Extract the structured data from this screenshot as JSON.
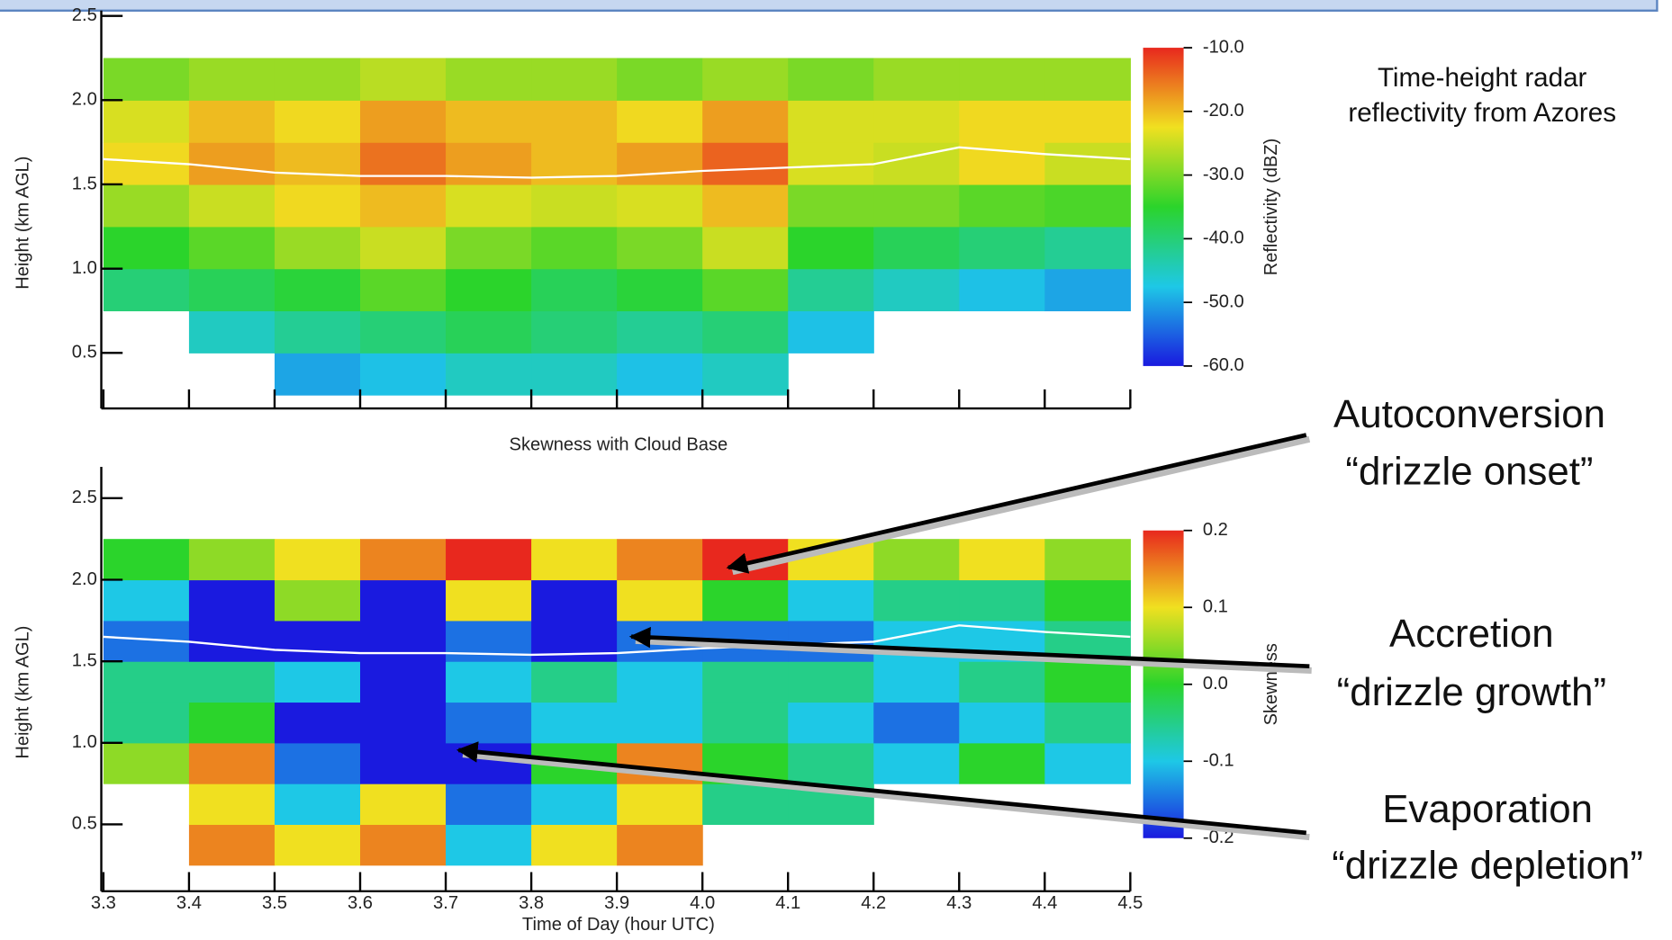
{
  "chart_data": [
    {
      "type": "heatmap",
      "ylabel": "Height (km AGL)",
      "xlim": [
        3.3,
        4.5
      ],
      "ylim": [
        0.17,
        2.5
      ],
      "yticks": [
        0.5,
        {
          "value": 1,
          "label": "1.0"
        },
        1.5,
        {
          "value": 2,
          "label": "2.0"
        },
        2.5
      ],
      "x_edges": [
        3.3,
        3.4,
        3.5,
        3.6,
        3.7,
        3.8,
        3.9,
        4.0,
        4.1,
        4.2,
        4.3,
        4.4,
        4.5
      ],
      "y_edges": [
        0.25,
        0.5,
        0.75,
        1.0,
        1.25,
        1.5,
        1.75,
        2.0,
        2.25
      ],
      "z": [
        [
          null,
          null,
          -50,
          -48,
          -45,
          -45,
          -48,
          -45,
          null,
          null,
          null,
          null
        ],
        [
          null,
          -45,
          -42,
          -40,
          -38,
          -40,
          -42,
          -40,
          -48,
          null,
          null,
          null
        ],
        [
          -40,
          -38,
          -36,
          -32,
          -35,
          -38,
          -36,
          -32,
          -42,
          -45,
          -48,
          -50
        ],
        [
          -35,
          -32,
          -28,
          -25,
          -30,
          -32,
          -30,
          -25,
          -35,
          -38,
          -40,
          -42
        ],
        [
          -28,
          -25,
          -22,
          -20,
          -24,
          -25,
          -24,
          -20,
          -30,
          -30,
          -32,
          -33
        ],
        [
          -22,
          -18,
          -20,
          -15,
          -18,
          -20,
          -18,
          -14,
          -24,
          -25,
          -22,
          -25
        ],
        [
          -24,
          -20,
          -22,
          -18,
          -20,
          -20,
          -22,
          -18,
          -24,
          -24,
          -22,
          -22
        ],
        [
          -30,
          -28,
          -28,
          -26,
          -28,
          -28,
          -30,
          -28,
          -30,
          -28,
          -28,
          -28
        ]
      ],
      "colormap": [
        "#1a1adf",
        "#1ec8e6",
        "#2bd42b",
        "#f0e020",
        "#e8281e"
      ],
      "colorbar": {
        "label": "Reflectivity (dBZ)",
        "lim": [
          -60,
          -10
        ],
        "ticks": [
          {
            "value": -10,
            "label": "-10.0"
          },
          {
            "value": -20,
            "label": "-20.0"
          },
          {
            "value": -30,
            "label": "-30.0"
          },
          {
            "value": -40,
            "label": "-40.0"
          },
          {
            "value": -50,
            "label": "-50.0"
          },
          {
            "value": -60,
            "label": "-60.0"
          }
        ]
      },
      "series": [
        {
          "color": "#ffffff",
          "x": [
            3.3,
            3.4,
            3.5,
            3.6,
            3.7,
            3.8,
            3.9,
            4.0,
            4.1,
            4.2,
            4.3,
            4.4,
            4.5
          ],
          "values": [
            1.65,
            1.62,
            1.57,
            1.55,
            1.55,
            1.54,
            1.55,
            1.58,
            1.6,
            1.62,
            1.72,
            1.68,
            1.65
          ]
        }
      ]
    },
    {
      "type": "heatmap",
      "title": "Skewness with Cloud Base",
      "xlabel": "Time of Day (hour UTC)",
      "ylabel": "Height (km AGL)",
      "xlim": [
        3.3,
        4.5
      ],
      "ylim": [
        0.09,
        2.66
      ],
      "xticks": [
        3.3,
        3.4,
        3.5,
        3.6,
        3.7,
        3.8,
        3.9,
        {
          "value": 4,
          "label": "4.0"
        },
        4.1,
        4.2,
        4.3,
        4.4,
        4.5
      ],
      "yticks": [
        0.5,
        {
          "value": 1,
          "label": "1.0"
        },
        1.5,
        {
          "value": 2,
          "label": "2.0"
        },
        2.5
      ],
      "x_edges": [
        3.3,
        3.4,
        3.5,
        3.6,
        3.7,
        3.8,
        3.9,
        4.0,
        4.1,
        4.2,
        4.3,
        4.4,
        4.5
      ],
      "y_edges": [
        0.25,
        0.5,
        0.75,
        1.0,
        1.25,
        1.5,
        1.75,
        2.0,
        2.25
      ],
      "z": [
        [
          null,
          0.15,
          0.1,
          0.15,
          -0.1,
          0.1,
          0.15,
          null,
          null,
          null,
          null,
          null
        ],
        [
          null,
          0.1,
          -0.1,
          0.1,
          -0.15,
          -0.1,
          0.1,
          -0.05,
          -0.05,
          null,
          null,
          null
        ],
        [
          0.05,
          0.15,
          -0.15,
          -0.2,
          -0.2,
          0,
          0.15,
          0,
          -0.05,
          -0.1,
          0,
          -0.1
        ],
        [
          -0.05,
          0,
          -0.2,
          -0.2,
          -0.15,
          -0.1,
          -0.1,
          -0.05,
          -0.1,
          -0.15,
          -0.1,
          -0.05
        ],
        [
          -0.05,
          -0.05,
          -0.1,
          -0.2,
          -0.1,
          -0.05,
          -0.1,
          -0.05,
          -0.05,
          -0.1,
          -0.05,
          0
        ],
        [
          -0.15,
          -0.2,
          -0.2,
          -0.2,
          -0.15,
          -0.2,
          -0.15,
          -0.15,
          -0.15,
          -0.1,
          -0.1,
          -0.05
        ],
        [
          -0.1,
          -0.2,
          0.05,
          -0.2,
          0.1,
          -0.2,
          0.1,
          0,
          -0.1,
          -0.05,
          -0.05,
          0
        ],
        [
          0,
          0.05,
          0.1,
          0.15,
          0.2,
          0.1,
          0.15,
          0.2,
          0.1,
          0.05,
          0.1,
          0.05
        ]
      ],
      "colormap": [
        "#1a1adf",
        "#1ec8e6",
        "#2bd42b",
        "#f0e020",
        "#e8281e"
      ],
      "colorbar": {
        "label": "Skewness",
        "lim": [
          -0.2,
          0.2
        ],
        "ticks": [
          0.2,
          0.1,
          {
            "value": 0,
            "label": "0.0"
          },
          -0.1,
          -0.2
        ]
      },
      "series": [
        {
          "color": "#ffffff",
          "x": [
            3.3,
            3.4,
            3.5,
            3.6,
            3.7,
            3.8,
            3.9,
            4.0,
            4.1,
            4.2,
            4.3,
            4.4,
            4.5
          ],
          "values": [
            1.65,
            1.62,
            1.57,
            1.55,
            1.55,
            1.54,
            1.55,
            1.58,
            1.6,
            1.62,
            1.72,
            1.68,
            1.65
          ]
        }
      ]
    }
  ],
  "caption": [
    "Time-height radar",
    "reflectivity from Azores"
  ],
  "annotations": [
    {
      "title": "Autoconversion",
      "subtitle": "“drizzle onset”"
    },
    {
      "title": "Accretion",
      "subtitle": "“drizzle growth”"
    },
    {
      "title": "Evaporation",
      "subtitle": "“drizzle depletion”"
    }
  ]
}
